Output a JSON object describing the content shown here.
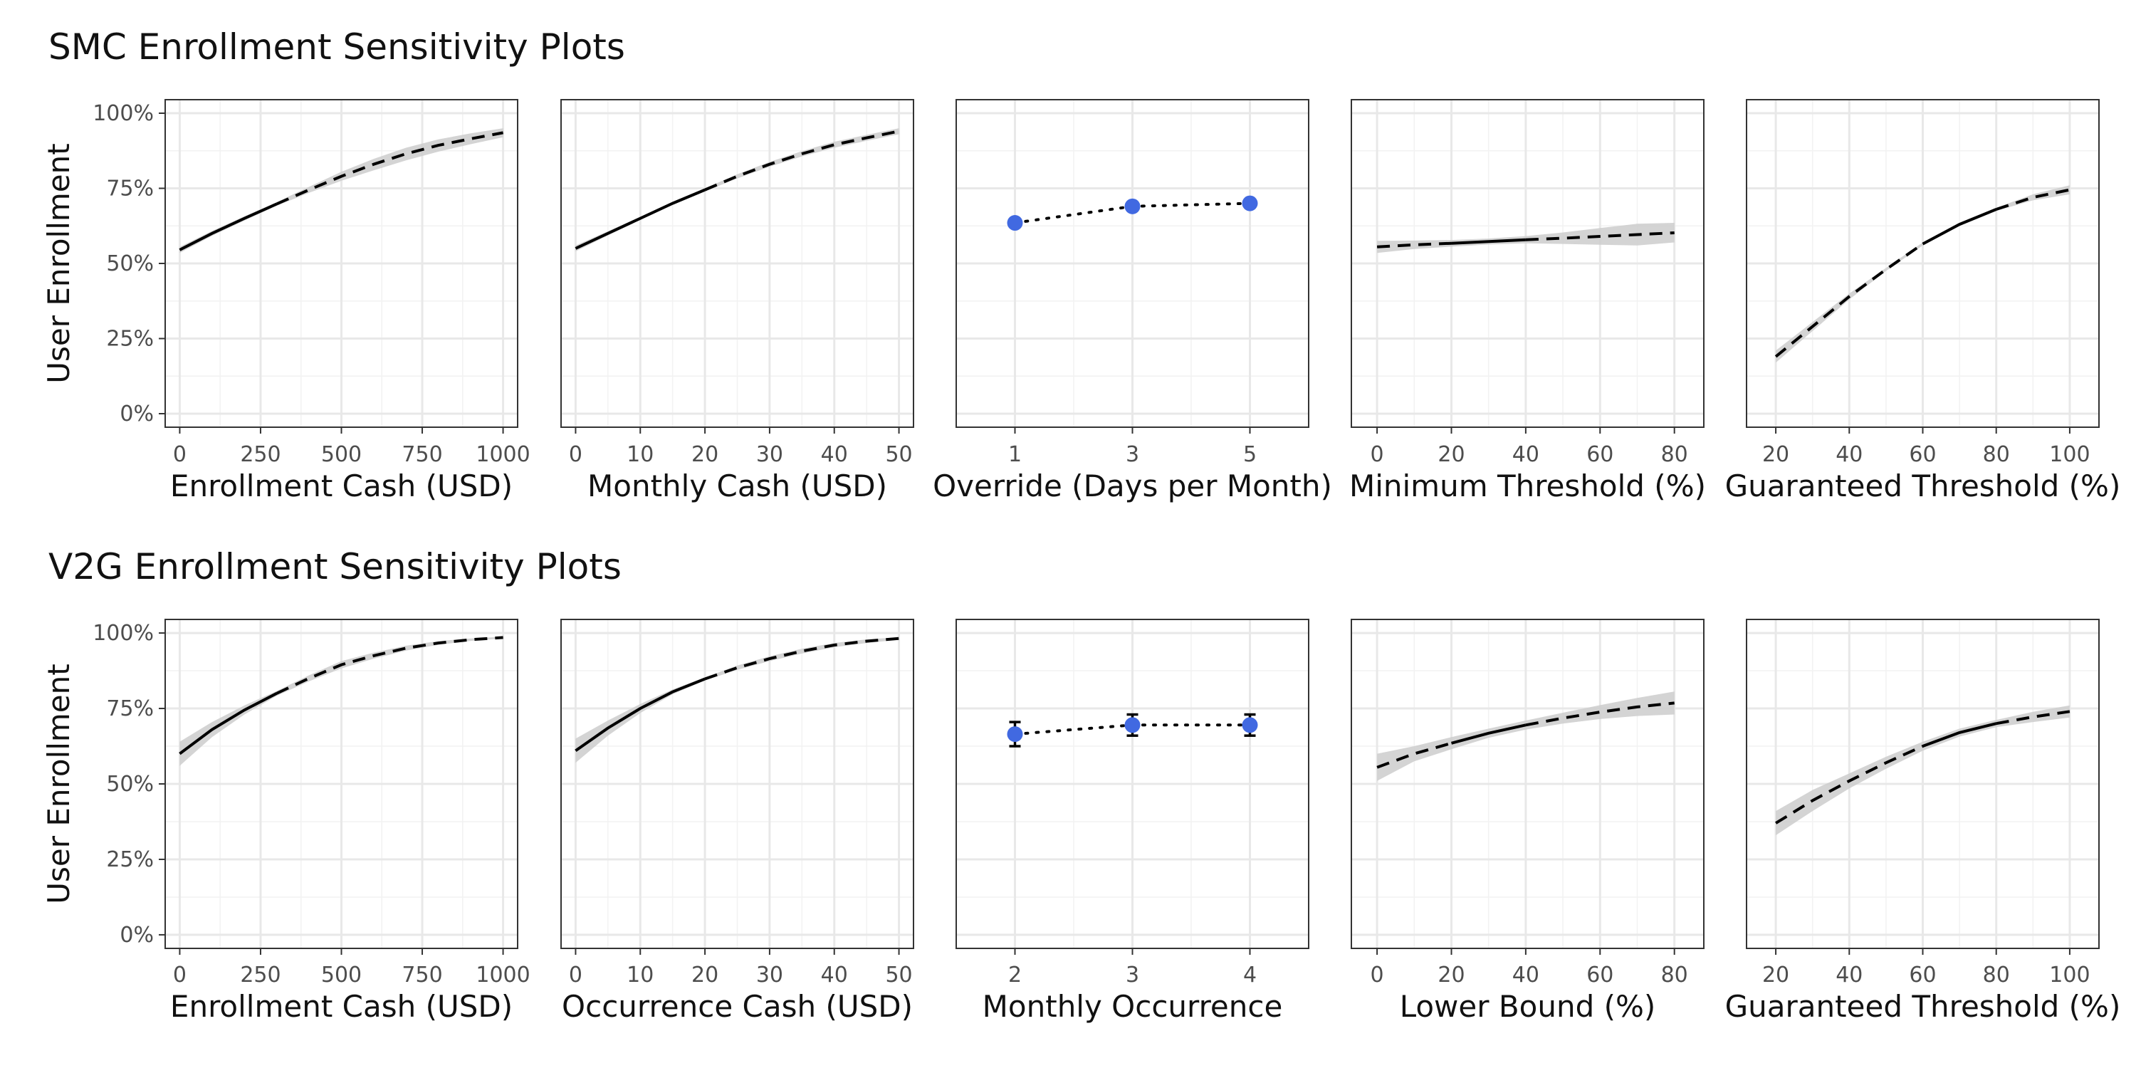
{
  "chart_data": [
    {
      "section": "SMC Enrollment Sensitivity Plots",
      "ylabel": "User Enrollment",
      "yticks": [
        "0%",
        "25%",
        "50%",
        "75%",
        "100%"
      ],
      "ylim": [
        0,
        1
      ],
      "panels": [
        {
          "type": "line",
          "xlabel": "Enrollment Cash (USD)",
          "xlim": [
            0,
            1000
          ],
          "xticks": [
            0,
            250,
            500,
            750,
            1000
          ],
          "xtick_labels": [
            "0",
            "250",
            "500",
            "750",
            "1000"
          ],
          "series": [
            {
              "style": "solid",
              "x": [
                0,
                100,
                200,
                300
              ],
              "y": [
                0.545,
                0.6,
                0.65,
                0.698
              ],
              "lower": [
                0.535,
                0.592,
                0.643,
                0.692
              ],
              "upper": [
                0.555,
                0.608,
                0.657,
                0.704
              ]
            },
            {
              "style": "dashed",
              "x": [
                300,
                400,
                500,
                600,
                700,
                800,
                900,
                1000
              ],
              "y": [
                0.698,
                0.745,
                0.79,
                0.83,
                0.865,
                0.893,
                0.915,
                0.935
              ],
              "lower": [
                0.692,
                0.735,
                0.775,
                0.81,
                0.843,
                0.872,
                0.897,
                0.92
              ],
              "upper": [
                0.704,
                0.755,
                0.805,
                0.848,
                0.885,
                0.913,
                0.933,
                0.95
              ]
            }
          ]
        },
        {
          "type": "line",
          "xlabel": "Monthly Cash (USD)",
          "xlim": [
            0,
            50
          ],
          "xticks": [
            0,
            10,
            20,
            30,
            40,
            50
          ],
          "xtick_labels": [
            "0",
            "10",
            "20",
            "30",
            "40",
            "50"
          ],
          "series": [
            {
              "style": "solid",
              "x": [
                0,
                5,
                10,
                15,
                20
              ],
              "y": [
                0.55,
                0.6,
                0.65,
                0.7,
                0.745
              ],
              "lower": [
                0.54,
                0.593,
                0.645,
                0.695,
                0.74
              ],
              "upper": [
                0.56,
                0.607,
                0.655,
                0.705,
                0.75
              ]
            },
            {
              "style": "dashed",
              "x": [
                20,
                25,
                30,
                35,
                40,
                45,
                50
              ],
              "y": [
                0.745,
                0.79,
                0.83,
                0.865,
                0.895,
                0.918,
                0.94
              ],
              "lower": [
                0.74,
                0.783,
                0.822,
                0.856,
                0.885,
                0.908,
                0.93
              ],
              "upper": [
                0.75,
                0.797,
                0.838,
                0.874,
                0.905,
                0.928,
                0.95
              ]
            }
          ]
        },
        {
          "type": "point",
          "xlabel": "Override (Days per Month)",
          "xlim": [
            0,
            6
          ],
          "xticks": [
            1,
            3,
            5
          ],
          "xtick_labels": [
            "1",
            "3",
            "5"
          ],
          "points": {
            "x": [
              1,
              3,
              5
            ],
            "y": [
              0.635,
              0.69,
              0.7
            ],
            "lower": null,
            "upper": null
          }
        },
        {
          "type": "line",
          "xlabel": "Minimum Threshold (%)",
          "xlim": [
            -3,
            84
          ],
          "xticks": [
            0,
            20,
            40,
            60,
            80
          ],
          "xtick_labels": [
            "0",
            "20",
            "40",
            "60",
            "80"
          ],
          "series": [
            {
              "style": "dashed",
              "x": [
                0,
                10,
                20
              ],
              "y": [
                0.555,
                0.562,
                0.567
              ],
              "lower": [
                0.535,
                0.548,
                0.556
              ],
              "upper": [
                0.575,
                0.576,
                0.578
              ]
            },
            {
              "style": "solid",
              "x": [
                20,
                30,
                40
              ],
              "y": [
                0.567,
                0.573,
                0.579
              ],
              "lower": [
                0.556,
                0.563,
                0.567
              ],
              "upper": [
                0.578,
                0.583,
                0.591
              ]
            },
            {
              "style": "dashed",
              "x": [
                40,
                50,
                60,
                70,
                80
              ],
              "y": [
                0.579,
                0.584,
                0.59,
                0.596,
                0.602
              ],
              "lower": [
                0.567,
                0.565,
                0.562,
                0.56,
                0.57
              ],
              "upper": [
                0.591,
                0.603,
                0.618,
                0.632,
                0.635
              ]
            }
          ]
        },
        {
          "type": "line",
          "xlabel": "Guaranteed Threshold (%)",
          "xlim": [
            16,
            104
          ],
          "xticks": [
            20,
            40,
            60,
            80,
            100
          ],
          "xtick_labels": [
            "20",
            "40",
            "60",
            "80",
            "100"
          ],
          "series": [
            {
              "style": "dashed",
              "x": [
                20,
                30,
                40,
                50,
                60
              ],
              "y": [
                0.19,
                0.29,
                0.39,
                0.48,
                0.565
              ],
              "lower": [
                0.17,
                0.275,
                0.38,
                0.475,
                0.56
              ],
              "upper": [
                0.21,
                0.305,
                0.4,
                0.485,
                0.57
              ]
            },
            {
              "style": "solid",
              "x": [
                60,
                70,
                80
              ],
              "y": [
                0.565,
                0.63,
                0.68
              ],
              "lower": [
                0.56,
                0.625,
                0.675
              ],
              "upper": [
                0.57,
                0.635,
                0.685
              ]
            },
            {
              "style": "dashed",
              "x": [
                80,
                90,
                100
              ],
              "y": [
                0.68,
                0.72,
                0.745
              ],
              "lower": [
                0.675,
                0.71,
                0.73
              ],
              "upper": [
                0.685,
                0.73,
                0.76
              ]
            }
          ]
        }
      ]
    },
    {
      "section": "V2G Enrollment Sensitivity Plots",
      "ylabel": "User Enrollment",
      "yticks": [
        "0%",
        "25%",
        "50%",
        "75%",
        "100%"
      ],
      "ylim": [
        0,
        1
      ],
      "panels": [
        {
          "type": "line",
          "xlabel": "Enrollment Cash (USD)",
          "xlim": [
            0,
            1000
          ],
          "xticks": [
            0,
            250,
            500,
            750,
            1000
          ],
          "xtick_labels": [
            "0",
            "250",
            "500",
            "750",
            "1000"
          ],
          "series": [
            {
              "style": "solid",
              "x": [
                0,
                100,
                200,
                300
              ],
              "y": [
                0.6,
                0.68,
                0.745,
                0.8
              ],
              "lower": [
                0.56,
                0.655,
                0.73,
                0.792
              ],
              "upper": [
                0.64,
                0.705,
                0.76,
                0.808
              ]
            },
            {
              "style": "dashed",
              "x": [
                300,
                400,
                500,
                600,
                700,
                800,
                900,
                1000
              ],
              "y": [
                0.8,
                0.85,
                0.895,
                0.925,
                0.95,
                0.967,
                0.978,
                0.985
              ],
              "lower": [
                0.792,
                0.84,
                0.883,
                0.915,
                0.942,
                0.961,
                0.974,
                0.982
              ],
              "upper": [
                0.808,
                0.86,
                0.907,
                0.935,
                0.958,
                0.973,
                0.982,
                0.988
              ]
            }
          ]
        },
        {
          "type": "line",
          "xlabel": "Occurrence Cash (USD)",
          "xlim": [
            0,
            50
          ],
          "xticks": [
            0,
            10,
            20,
            30,
            40,
            50
          ],
          "xtick_labels": [
            "0",
            "10",
            "20",
            "30",
            "40",
            "50"
          ],
          "series": [
            {
              "style": "solid",
              "x": [
                0,
                5,
                10,
                15,
                20
              ],
              "y": [
                0.61,
                0.685,
                0.75,
                0.805,
                0.848
              ],
              "lower": [
                0.57,
                0.66,
                0.735,
                0.797,
                0.843
              ],
              "upper": [
                0.65,
                0.71,
                0.765,
                0.813,
                0.853
              ]
            },
            {
              "style": "dashed",
              "x": [
                20,
                25,
                30,
                35,
                40,
                45,
                50
              ],
              "y": [
                0.848,
                0.885,
                0.915,
                0.94,
                0.96,
                0.973,
                0.982
              ],
              "lower": [
                0.843,
                0.878,
                0.907,
                0.932,
                0.953,
                0.967,
                0.978
              ],
              "upper": [
                0.853,
                0.892,
                0.923,
                0.948,
                0.967,
                0.979,
                0.986
              ]
            }
          ]
        },
        {
          "type": "point",
          "xlabel": "Monthly Occurrence",
          "xlim": [
            1.5,
            4.5
          ],
          "xticks": [
            2,
            3,
            4
          ],
          "xtick_labels": [
            "2",
            "3",
            "4"
          ],
          "points": {
            "x": [
              2,
              3,
              4
            ],
            "y": [
              0.665,
              0.695,
              0.695
            ],
            "lower": [
              0.625,
              0.66,
              0.66
            ],
            "upper": [
              0.705,
              0.73,
              0.73
            ]
          }
        },
        {
          "type": "line",
          "xlabel": "Lower Bound (%)",
          "xlim": [
            -3,
            84
          ],
          "xticks": [
            0,
            20,
            40,
            60,
            80
          ],
          "xtick_labels": [
            "0",
            "20",
            "40",
            "60",
            "80"
          ],
          "series": [
            {
              "style": "dashed",
              "x": [
                0,
                10,
                20
              ],
              "y": [
                0.555,
                0.6,
                0.635
              ],
              "lower": [
                0.51,
                0.575,
                0.615
              ],
              "upper": [
                0.6,
                0.625,
                0.655
              ]
            },
            {
              "style": "solid",
              "x": [
                20,
                30,
                40
              ],
              "y": [
                0.635,
                0.668,
                0.695
              ],
              "lower": [
                0.615,
                0.653,
                0.68
              ],
              "upper": [
                0.655,
                0.683,
                0.71
              ]
            },
            {
              "style": "dashed",
              "x": [
                40,
                50,
                60,
                70,
                80
              ],
              "y": [
                0.695,
                0.718,
                0.738,
                0.755,
                0.768
              ],
              "lower": [
                0.68,
                0.7,
                0.715,
                0.725,
                0.73
              ],
              "upper": [
                0.71,
                0.736,
                0.761,
                0.785,
                0.806
              ]
            }
          ]
        },
        {
          "type": "line",
          "xlabel": "Guaranteed Threshold (%)",
          "xlim": [
            16,
            104
          ],
          "xticks": [
            20,
            40,
            60,
            80,
            100
          ],
          "xtick_labels": [
            "20",
            "40",
            "60",
            "80",
            "100"
          ],
          "series": [
            {
              "style": "dashed",
              "x": [
                20,
                30,
                40,
                50,
                60
              ],
              "y": [
                0.37,
                0.445,
                0.51,
                0.57,
                0.625
              ],
              "lower": [
                0.33,
                0.41,
                0.485,
                0.55,
                0.61
              ],
              "upper": [
                0.41,
                0.48,
                0.535,
                0.59,
                0.64
              ]
            },
            {
              "style": "solid",
              "x": [
                60,
                70,
                80
              ],
              "y": [
                0.625,
                0.67,
                0.7
              ],
              "lower": [
                0.61,
                0.657,
                0.688
              ],
              "upper": [
                0.64,
                0.683,
                0.712
              ]
            },
            {
              "style": "dashed",
              "x": [
                80,
                90,
                100
              ],
              "y": [
                0.7,
                0.722,
                0.74
              ],
              "lower": [
                0.688,
                0.705,
                0.72
              ],
              "upper": [
                0.712,
                0.739,
                0.76
              ]
            }
          ]
        }
      ]
    }
  ]
}
